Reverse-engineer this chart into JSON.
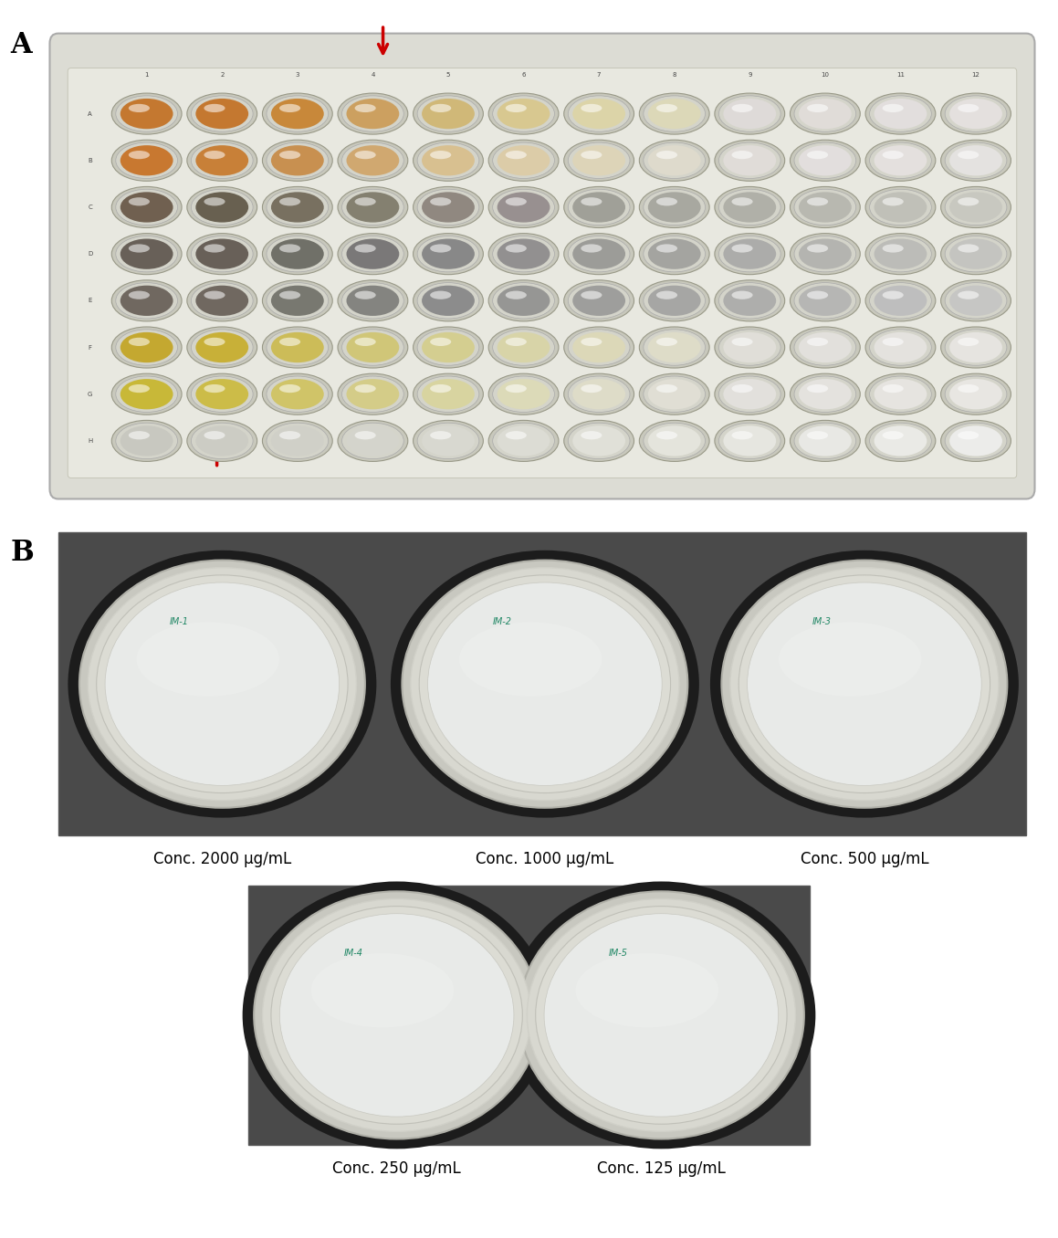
{
  "figure_width": 11.59,
  "figure_height": 13.56,
  "background_color": "#ffffff",
  "panel_A_label": "A",
  "panel_B_label": "B",
  "label_fontsize": 22,
  "label_fontweight": "bold",
  "arrow_color": "#cc0000",
  "conc_labels_top": [
    "Conc. 2000 μg/mL",
    "Conc. 1000 μg/mL",
    "Conc. 500 μg/mL"
  ],
  "conc_labels_bottom": [
    "Conc. 250 μg/mL",
    "Conc. 125 μg/mL"
  ],
  "conc_fontsize": 12
}
